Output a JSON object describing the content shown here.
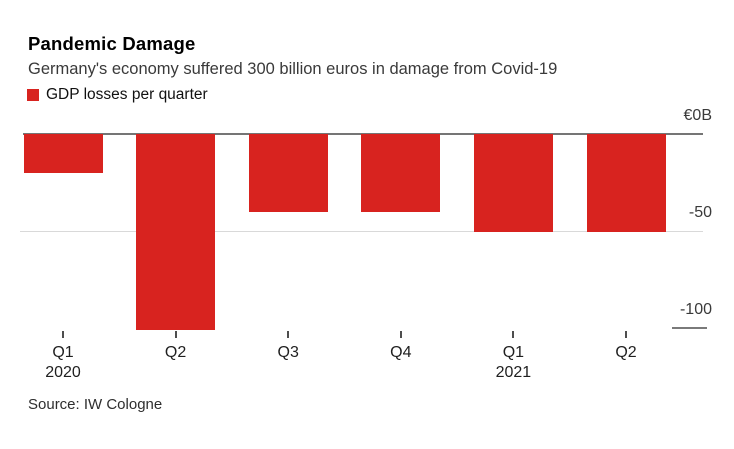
{
  "chart_data": {
    "type": "bar",
    "title": "Pandemic Damage",
    "subtitle": "Germany's economy suffered 300 billion euros in damage from Covid-19",
    "legend": [
      {
        "label": "GDP losses per quarter",
        "color": "#d8231f"
      }
    ],
    "categories": [
      "Q1",
      "Q2",
      "Q3",
      "Q4",
      "Q1",
      "Q2"
    ],
    "categories_full": [
      "Q1 2020",
      "Q2 2020",
      "Q3 2020",
      "Q4 2020",
      "Q1 2021",
      "Q2 2021"
    ],
    "year_groups": [
      {
        "label": "2020",
        "at_index": 0
      },
      {
        "label": "2021",
        "at_index": 4
      }
    ],
    "values": [
      -20,
      -100,
      -40,
      -40,
      -50,
      -50
    ],
    "y_ticks": [
      {
        "label": "€0B",
        "value": 0
      },
      {
        "label": "-50",
        "value": -50
      },
      {
        "label": "-100",
        "value": -100
      }
    ],
    "ylim": [
      -110,
      0
    ],
    "grid": "horizontal",
    "legend_position": "top-left",
    "bar_color": "#d8231f",
    "axis_color": "#757575",
    "grid_color": "#d9d9d9",
    "source": "Source: IW Cologne"
  }
}
